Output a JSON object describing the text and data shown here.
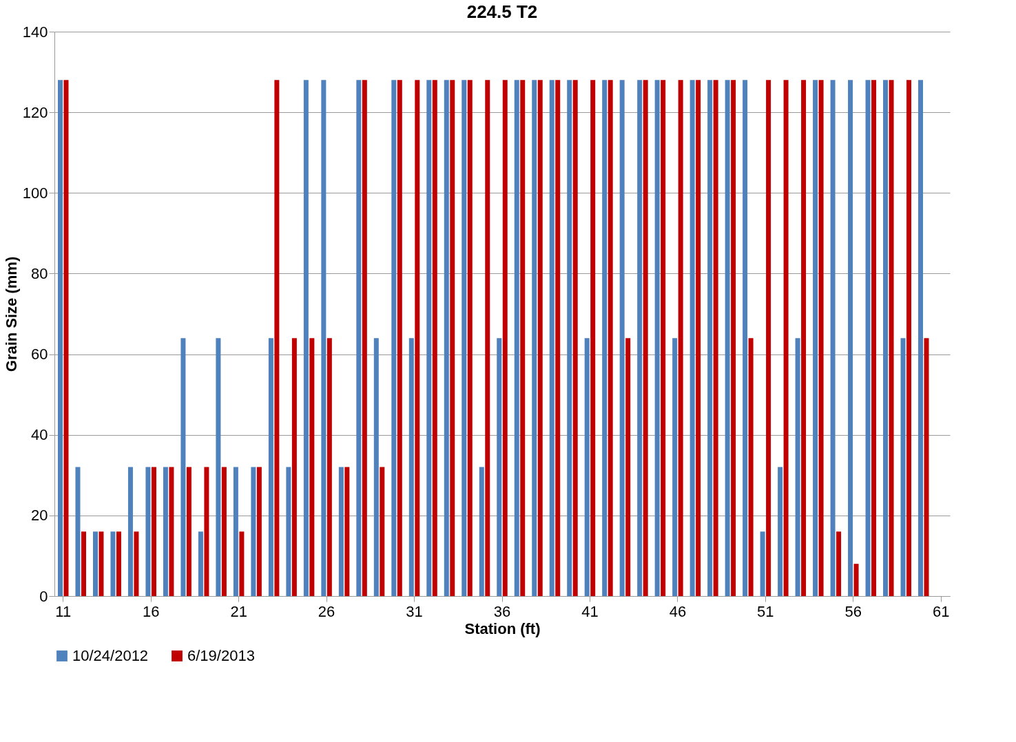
{
  "chart_data": {
    "type": "bar",
    "title": "224.5 T2",
    "xlabel": "Station (ft)",
    "ylabel": "Grain Size (mm)",
    "categories": [
      "11",
      null,
      null,
      null,
      null,
      "16",
      null,
      null,
      null,
      null,
      "21",
      null,
      null,
      null,
      null,
      "26",
      null,
      null,
      null,
      null,
      "31",
      null,
      null,
      null,
      null,
      "36",
      null,
      null,
      null,
      null,
      "41",
      null,
      null,
      null,
      null,
      "46",
      null,
      null,
      null,
      null,
      "51",
      null,
      null,
      null,
      null,
      "56",
      null,
      null,
      null,
      null,
      "61"
    ],
    "series": [
      {
        "name": "10/24/2012",
        "color": "#4f81bd",
        "values": [
          128,
          32,
          16,
          16,
          32,
          32,
          32,
          64,
          16,
          64,
          32,
          32,
          64,
          32,
          128,
          128,
          32,
          128,
          64,
          128,
          64,
          128,
          128,
          128,
          32,
          64,
          128,
          128,
          128,
          128,
          64,
          128,
          128,
          128,
          128,
          64,
          128,
          128,
          128,
          128,
          16,
          32,
          64,
          128,
          128,
          128,
          128,
          128,
          64,
          128,
          null
        ]
      },
      {
        "name": "6/19/2013",
        "color": "#c00000",
        "values": [
          128,
          16,
          16,
          16,
          16,
          32,
          32,
          32,
          32,
          32,
          16,
          32,
          128,
          64,
          64,
          64,
          32,
          128,
          32,
          128,
          128,
          128,
          128,
          128,
          128,
          128,
          128,
          128,
          128,
          128,
          128,
          128,
          64,
          128,
          128,
          128,
          128,
          128,
          128,
          64,
          128,
          128,
          128,
          128,
          16,
          8,
          128,
          128,
          128,
          64,
          null
        ]
      }
    ],
    "ylim": [
      0,
      140
    ],
    "yticks": [
      0,
      20,
      40,
      60,
      80,
      100,
      120,
      140
    ],
    "grid": "y",
    "legend": "bottom"
  }
}
